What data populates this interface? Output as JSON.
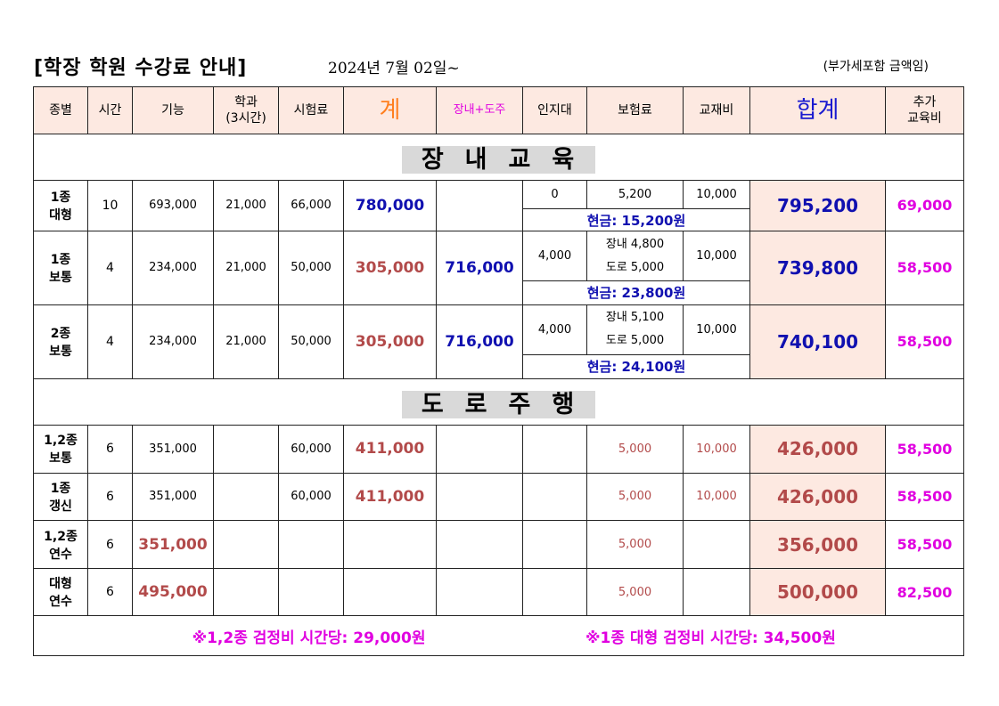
{
  "header": {
    "title": "[학장 학원 수강료 안내]",
    "date": "2024년 7월 02일~",
    "vat_note": "(부가세포함 금액임)"
  },
  "columns": {
    "type": "종별",
    "hours": "시간",
    "skill": "기능",
    "theory_1": "학과",
    "theory_2": "(3시간)",
    "exam": "시험료",
    "subtotal": "계",
    "course_road": "장내+도주",
    "stamp": "인지대",
    "insurance": "보험료",
    "material": "교재비",
    "total": "합계",
    "extra_1": "추가",
    "extra_2": "교육비"
  },
  "sections": {
    "course": "장내교육",
    "road": "도로주행"
  },
  "course_rows": [
    {
      "type_1": "1종",
      "type_2": "대형",
      "hours": "10",
      "skill": "693,000",
      "theory": "21,000",
      "exam": "66,000",
      "subtotal": "780,000",
      "course_road": "",
      "stamp": "0",
      "insurance_1": "5,200",
      "insurance_2": "",
      "material": "10,000",
      "cash": "현금: 15,200원",
      "total": "795,200",
      "extra": "69,000"
    },
    {
      "type_1": "1종",
      "type_2": "보통",
      "hours": "4",
      "skill": "234,000",
      "theory": "21,000",
      "exam": "50,000",
      "subtotal": "305,000",
      "course_road": "716,000",
      "stamp": "4,000",
      "insurance_1": "장내 4,800",
      "insurance_2": "도로 5,000",
      "material": "10,000",
      "cash": "현금: 23,800원",
      "total": "739,800",
      "extra": "58,500"
    },
    {
      "type_1": "2종",
      "type_2": "보통",
      "hours": "4",
      "skill": "234,000",
      "theory": "21,000",
      "exam": "50,000",
      "subtotal": "305,000",
      "course_road": "716,000",
      "stamp": "4,000",
      "insurance_1": "장내 5,100",
      "insurance_2": "도로 5,000",
      "material": "10,000",
      "cash": "현금: 24,100원",
      "total": "740,100",
      "extra": "58,500"
    }
  ],
  "road_rows": [
    {
      "type_1": "1,2종",
      "type_2": "보통",
      "hours": "6",
      "skill": "351,000",
      "theory": "",
      "exam": "60,000",
      "subtotal": "411,000",
      "insurance": "5,000",
      "material": "10,000",
      "total": "426,000",
      "extra": "58,500"
    },
    {
      "type_1": "1종",
      "type_2": "갱신",
      "hours": "6",
      "skill": "351,000",
      "theory": "",
      "exam": "60,000",
      "subtotal": "411,000",
      "insurance": "5,000",
      "material": "10,000",
      "total": "426,000",
      "extra": "58,500"
    },
    {
      "type_1": "1,2종",
      "type_2": "연수",
      "hours": "6",
      "skill": "351,000",
      "theory": "",
      "exam": "",
      "subtotal": "",
      "insurance": "5,000",
      "material": "",
      "total": "356,000",
      "extra": "58,500"
    },
    {
      "type_1": "대형",
      "type_2": "연수",
      "hours": "6",
      "skill": "495,000",
      "theory": "",
      "exam": "",
      "subtotal": "",
      "insurance": "5,000",
      "material": "",
      "total": "500,000",
      "extra": "82,500"
    }
  ],
  "footer": {
    "note_1": "※1,2종 검정비 시간당:  29,000원",
    "note_2": "※1종  대형 검정비 시간당: 34,500원"
  },
  "colors": {
    "header_bg": "#fde9e1",
    "blue": "#1010b0",
    "red": "#b24a4a",
    "magenta": "#e000e0",
    "orange": "#ff7f1f"
  }
}
